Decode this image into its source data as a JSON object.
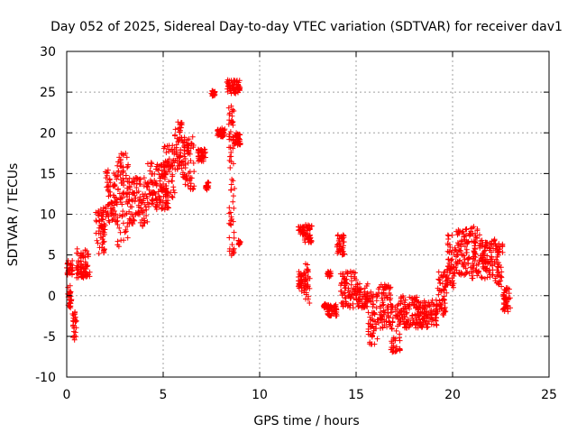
{
  "chart_data": {
    "type": "scatter",
    "title": "Day 052 of 2025, Sidereal Day-to-day VTEC variation (SDTVAR) for receiver dav1",
    "xlabel": "GPS time / hours",
    "ylabel": "SDTVAR / TECUs",
    "xlim": [
      0,
      25
    ],
    "ylim": [
      -10,
      30
    ],
    "xticks": [
      "0",
      "5",
      "10",
      "15",
      "20",
      "25"
    ],
    "yticks": [
      "-10",
      "-5",
      "0",
      "5",
      "10",
      "15",
      "20",
      "25",
      "30"
    ],
    "grid": true,
    "marker": "plus",
    "series_color": "#ff0000",
    "series": [
      {
        "name": "SDTVAR",
        "segments": [
          {
            "x0": 0.0,
            "x1": 0.3,
            "ymin": 2.5,
            "ymax": 4.5
          },
          {
            "x0": 0.05,
            "x1": 0.25,
            "ymin": -1.5,
            "ymax": 1.5
          },
          {
            "x0": 0.3,
            "x1": 0.5,
            "ymin": -5.5,
            "ymax": -2.0
          },
          {
            "x0": 0.5,
            "x1": 1.2,
            "ymin": 2.0,
            "ymax": 5.8
          },
          {
            "x0": 1.5,
            "x1": 2.0,
            "ymin": 5.0,
            "ymax": 11.0
          },
          {
            "x0": 2.0,
            "x1": 2.6,
            "ymin": 9.0,
            "ymax": 15.5
          },
          {
            "x0": 2.6,
            "x1": 3.2,
            "ymin": 6.0,
            "ymax": 17.5
          },
          {
            "x0": 3.2,
            "x1": 4.2,
            "ymin": 8.5,
            "ymax": 14.5
          },
          {
            "x0": 4.2,
            "x1": 5.3,
            "ymin": 10.5,
            "ymax": 16.5
          },
          {
            "x0": 5.0,
            "x1": 5.6,
            "ymin": 12.0,
            "ymax": 18.5
          },
          {
            "x0": 5.6,
            "x1": 6.0,
            "ymin": 15.5,
            "ymax": 21.5
          },
          {
            "x0": 6.0,
            "x1": 6.6,
            "ymin": 13.0,
            "ymax": 19.5
          },
          {
            "x0": 6.8,
            "x1": 7.2,
            "ymin": 16.5,
            "ymax": 18.0
          },
          {
            "x0": 7.2,
            "x1": 7.4,
            "ymin": 13.0,
            "ymax": 14.0
          },
          {
            "x0": 7.5,
            "x1": 7.7,
            "ymin": 24.5,
            "ymax": 25.2
          },
          {
            "x0": 7.8,
            "x1": 8.2,
            "ymin": 19.5,
            "ymax": 20.6
          },
          {
            "x0": 8.3,
            "x1": 9.0,
            "ymin": 24.8,
            "ymax": 26.5
          },
          {
            "x0": 8.4,
            "x1": 8.7,
            "ymin": 4.5,
            "ymax": 24.0
          },
          {
            "x0": 8.6,
            "x1": 9.0,
            "ymin": 18.5,
            "ymax": 20.0
          },
          {
            "x0": 8.9,
            "x1": 9.0,
            "ymin": 6.2,
            "ymax": 6.8
          },
          {
            "x0": 12.0,
            "x1": 12.3,
            "ymin": 0.5,
            "ymax": 3.0
          },
          {
            "x0": 12.0,
            "x1": 12.3,
            "ymin": 7.5,
            "ymax": 8.5
          },
          {
            "x0": 12.3,
            "x1": 12.6,
            "ymin": -1.0,
            "ymax": 4.0
          },
          {
            "x0": 12.3,
            "x1": 12.7,
            "ymin": 6.5,
            "ymax": 8.8
          },
          {
            "x0": 13.3,
            "x1": 13.5,
            "ymin": -1.5,
            "ymax": -1.0
          },
          {
            "x0": 13.5,
            "x1": 14.0,
            "ymin": -2.5,
            "ymax": -1.0
          },
          {
            "x0": 13.5,
            "x1": 13.7,
            "ymin": 2.3,
            "ymax": 3.0
          },
          {
            "x0": 14.0,
            "x1": 14.4,
            "ymin": 5.0,
            "ymax": 7.5
          },
          {
            "x0": 14.2,
            "x1": 15.0,
            "ymin": -1.5,
            "ymax": 3.0
          },
          {
            "x0": 15.0,
            "x1": 15.6,
            "ymin": -1.5,
            "ymax": 1.5
          },
          {
            "x0": 15.6,
            "x1": 16.1,
            "ymin": -6.0,
            "ymax": 0.5
          },
          {
            "x0": 16.1,
            "x1": 16.8,
            "ymin": -4.5,
            "ymax": 1.5
          },
          {
            "x0": 16.8,
            "x1": 17.3,
            "ymin": -7.0,
            "ymax": -1.0
          },
          {
            "x0": 17.3,
            "x1": 18.2,
            "ymin": -4.0,
            "ymax": 0.0
          },
          {
            "x0": 18.2,
            "x1": 19.2,
            "ymin": -4.0,
            "ymax": -0.5
          },
          {
            "x0": 19.2,
            "x1": 19.7,
            "ymin": -2.5,
            "ymax": 3.0
          },
          {
            "x0": 19.7,
            "x1": 20.2,
            "ymin": 1.0,
            "ymax": 8.0
          },
          {
            "x0": 20.2,
            "x1": 21.0,
            "ymin": 2.5,
            "ymax": 8.5
          },
          {
            "x0": 21.0,
            "x1": 21.5,
            "ymin": 2.0,
            "ymax": 8.5
          },
          {
            "x0": 21.5,
            "x1": 22.2,
            "ymin": 2.0,
            "ymax": 7.0
          },
          {
            "x0": 22.2,
            "x1": 22.6,
            "ymin": 1.0,
            "ymax": 6.5
          },
          {
            "x0": 22.6,
            "x1": 23.0,
            "ymin": -2.0,
            "ymax": 1.0
          }
        ]
      }
    ]
  }
}
